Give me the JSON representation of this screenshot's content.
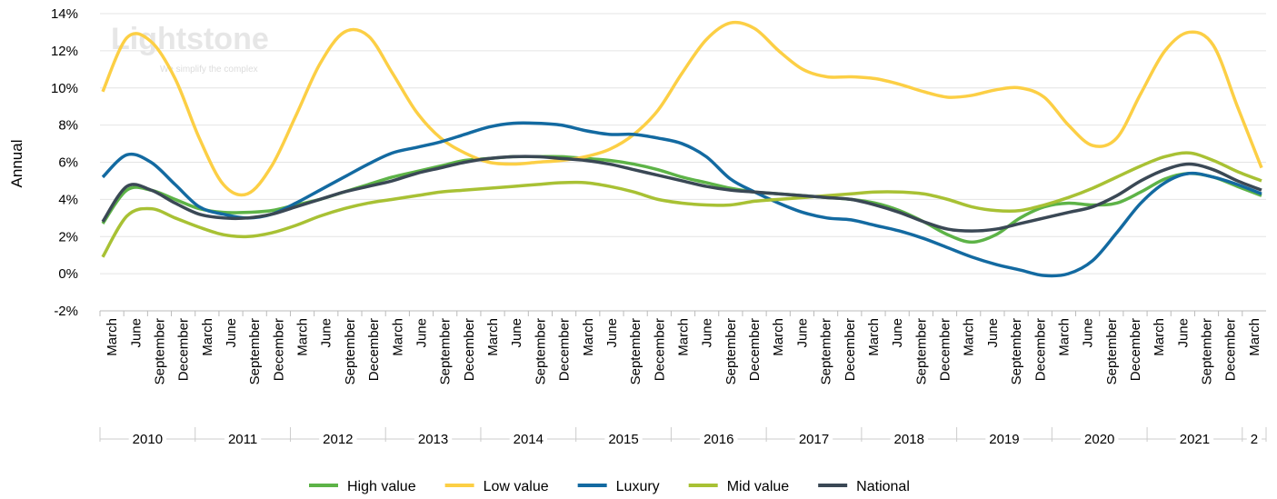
{
  "chart_data": {
    "type": "line",
    "y_label": "Annual",
    "watermark": {
      "title": "Lightstone",
      "subtitle": "We simplify the complex"
    },
    "categories": [
      "March",
      "June",
      "September",
      "December",
      "March",
      "June",
      "September",
      "December",
      "March",
      "June",
      "September",
      "December",
      "March",
      "June",
      "September",
      "December",
      "March",
      "June",
      "September",
      "December",
      "March",
      "June",
      "September",
      "December",
      "March",
      "June",
      "September",
      "December",
      "March",
      "June",
      "September",
      "December",
      "March",
      "June",
      "September",
      "December",
      "March",
      "June",
      "September",
      "December",
      "March",
      "June",
      "September",
      "December",
      "March",
      "June",
      "September",
      "December",
      "March"
    ],
    "x_groups": [
      "2010",
      "2011",
      "2012",
      "2013",
      "2014",
      "2015",
      "2016",
      "2017",
      "2018",
      "2019",
      "2020",
      "2021",
      "2"
    ],
    "ylim": [
      -2,
      14
    ],
    "yticks": [
      {
        "value": -2,
        "label": "-2%"
      },
      {
        "value": 0,
        "label": "0%"
      },
      {
        "value": 2,
        "label": "2%"
      },
      {
        "value": 4,
        "label": "4%"
      },
      {
        "value": 6,
        "label": "6%"
      },
      {
        "value": 8,
        "label": "8%"
      },
      {
        "value": 10,
        "label": "10%"
      },
      {
        "value": 12,
        "label": "12%"
      },
      {
        "value": 14,
        "label": "14%"
      }
    ],
    "grid": true,
    "legend": "bottom",
    "series": [
      {
        "name": "High value",
        "color": "#5db347",
        "values": [
          2.7,
          4.5,
          4.5,
          4.0,
          3.5,
          3.3,
          3.3,
          3.4,
          3.7,
          4.0,
          4.4,
          4.8,
          5.2,
          5.5,
          5.8,
          6.1,
          6.2,
          6.3,
          6.3,
          6.3,
          6.2,
          6.1,
          5.9,
          5.6,
          5.2,
          4.9,
          4.6,
          4.4,
          4.3,
          4.2,
          4.1,
          4.0,
          3.8,
          3.4,
          2.8,
          2.1,
          1.7,
          2.1,
          3.0,
          3.6,
          3.8,
          3.7,
          3.8,
          4.4,
          5.1,
          5.4,
          5.2,
          4.7,
          4.2
        ]
      },
      {
        "name": "Low value",
        "color": "#fccf45",
        "values": [
          9.8,
          12.7,
          12.5,
          10.5,
          7.3,
          4.8,
          4.3,
          5.8,
          8.5,
          11.3,
          13.0,
          12.8,
          10.8,
          8.7,
          7.3,
          6.5,
          6.0,
          5.9,
          6.0,
          6.1,
          6.3,
          6.7,
          7.5,
          8.8,
          10.8,
          12.6,
          13.5,
          13.2,
          12.0,
          11.0,
          10.6,
          10.6,
          10.5,
          10.2,
          9.8,
          9.5,
          9.6,
          9.9,
          10.0,
          9.5,
          8.0,
          6.9,
          7.3,
          9.7,
          12.0,
          13.0,
          12.3,
          9.0,
          5.7
        ]
      },
      {
        "name": "Luxury",
        "color": "#136aa1",
        "values": [
          5.2,
          6.4,
          6.0,
          4.8,
          3.6,
          3.2,
          3.0,
          3.2,
          3.8,
          4.5,
          5.2,
          5.9,
          6.5,
          6.8,
          7.1,
          7.5,
          7.9,
          8.1,
          8.1,
          8.0,
          7.7,
          7.5,
          7.5,
          7.3,
          7.0,
          6.3,
          5.1,
          4.4,
          3.8,
          3.3,
          3.0,
          2.9,
          2.6,
          2.3,
          1.9,
          1.4,
          0.9,
          0.5,
          0.2,
          -0.1,
          0.0,
          0.7,
          2.2,
          3.8,
          4.9,
          5.4,
          5.2,
          4.8,
          4.3
        ]
      },
      {
        "name": "Mid value",
        "color": "#a8c134",
        "values": [
          0.9,
          3.1,
          3.5,
          3.0,
          2.5,
          2.1,
          2.0,
          2.2,
          2.6,
          3.1,
          3.5,
          3.8,
          4.0,
          4.2,
          4.4,
          4.5,
          4.6,
          4.7,
          4.8,
          4.9,
          4.9,
          4.7,
          4.4,
          4.0,
          3.8,
          3.7,
          3.7,
          3.9,
          4.0,
          4.1,
          4.2,
          4.3,
          4.4,
          4.4,
          4.3,
          4.0,
          3.6,
          3.4,
          3.4,
          3.7,
          4.1,
          4.6,
          5.2,
          5.8,
          6.3,
          6.5,
          6.1,
          5.5,
          5.0
        ]
      },
      {
        "name": "National",
        "color": "#3a4855",
        "values": [
          2.8,
          4.7,
          4.5,
          3.8,
          3.2,
          3.0,
          3.0,
          3.2,
          3.6,
          4.0,
          4.4,
          4.7,
          5.0,
          5.4,
          5.7,
          6.0,
          6.2,
          6.3,
          6.3,
          6.2,
          6.1,
          5.9,
          5.6,
          5.3,
          5.0,
          4.7,
          4.5,
          4.4,
          4.3,
          4.2,
          4.1,
          4.0,
          3.7,
          3.3,
          2.8,
          2.4,
          2.3,
          2.4,
          2.7,
          3.0,
          3.3,
          3.6,
          4.2,
          5.0,
          5.6,
          5.9,
          5.6,
          5.0,
          4.5
        ]
      }
    ]
  }
}
